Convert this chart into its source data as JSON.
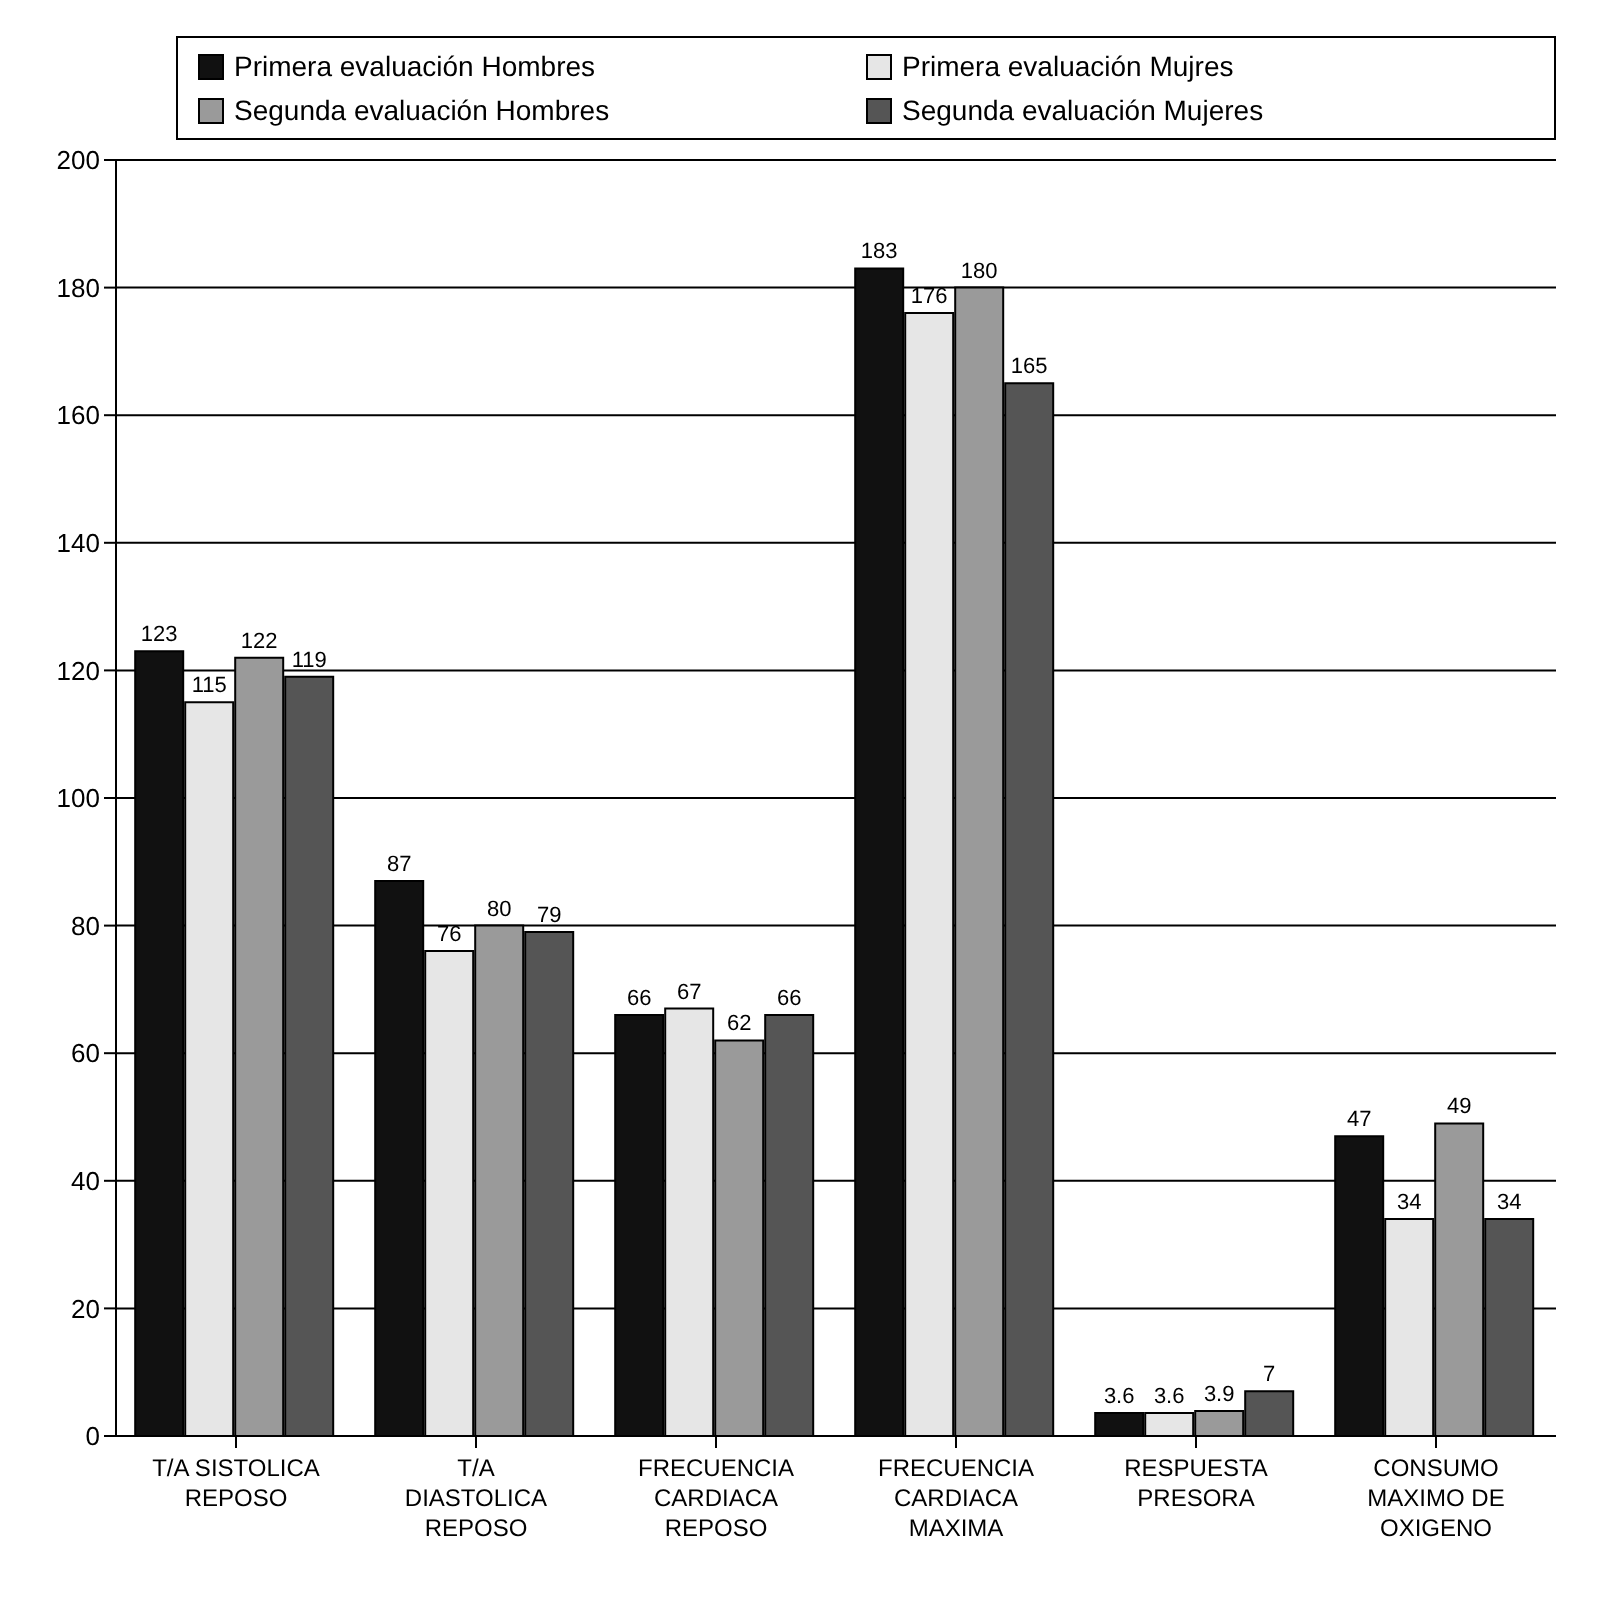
{
  "chart_data": {
    "type": "bar",
    "categories": [
      "T/A SISTOLICA REPOSO",
      "T/A DIASTOLICA REPOSO",
      "FRECUENCIA CARDIACA REPOSO",
      "FRECUENCIA CARDIACA MAXIMA",
      "RESPUESTA PRESORA",
      "CONSUMO MAXIMO DE OXIGENO"
    ],
    "series": [
      {
        "name": "Primera evaluación Hombres",
        "color": "#111111",
        "values": [
          123,
          87,
          66,
          183,
          3.6,
          47
        ]
      },
      {
        "name": "Primera evaluación Mujres",
        "color": "#e6e6e6",
        "values": [
          115,
          76,
          67,
          176,
          3.6,
          34
        ]
      },
      {
        "name": "Segunda evaluación Hombres",
        "color": "#9a9a9a",
        "values": [
          122,
          80,
          62,
          180,
          3.9,
          49
        ]
      },
      {
        "name": "Segunda evaluación Mujeres",
        "color": "#555555",
        "values": [
          119,
          79,
          66,
          165,
          7,
          34
        ]
      }
    ],
    "ylim": [
      0,
      200
    ],
    "yticks": [
      0,
      20,
      40,
      60,
      80,
      100,
      120,
      140,
      160,
      180,
      200
    ],
    "grid": "y",
    "legend": "top",
    "data_labels": true
  }
}
